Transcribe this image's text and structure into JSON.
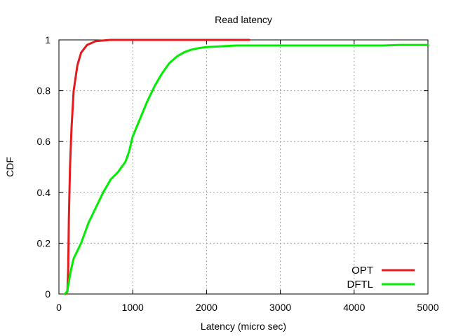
{
  "chart_data": {
    "type": "line",
    "title": "Read latency",
    "xlabel": "Latency (micro sec)",
    "ylabel": "CDF",
    "xlim": [
      0,
      5000
    ],
    "ylim": [
      0,
      1
    ],
    "x_ticks": [
      0,
      1000,
      2000,
      3000,
      4000,
      5000
    ],
    "x_tick_labels": [
      "0",
      "1000",
      "2000",
      "3000",
      "4000",
      "5000"
    ],
    "y_ticks": [
      0,
      0.2,
      0.4,
      0.6,
      0.8,
      1
    ],
    "y_tick_labels": [
      "0",
      "0.2",
      "0.4",
      "0.6",
      "0.8",
      "1"
    ],
    "grid": true,
    "legend_position": "bottom-right",
    "series": [
      {
        "name": "OPT",
        "color": "#e41a1c",
        "points": [
          [
            90,
            0
          ],
          [
            115,
            0.01
          ],
          [
            125,
            0.1
          ],
          [
            135,
            0.3
          ],
          [
            150,
            0.5
          ],
          [
            170,
            0.65
          ],
          [
            200,
            0.8
          ],
          [
            250,
            0.9
          ],
          [
            300,
            0.95
          ],
          [
            380,
            0.98
          ],
          [
            500,
            0.995
          ],
          [
            700,
            1.0
          ],
          [
            1500,
            1.0
          ],
          [
            2580,
            1.0
          ]
        ]
      },
      {
        "name": "DFTL",
        "color": "#00ee00",
        "points": [
          [
            80,
            0
          ],
          [
            110,
            0.01
          ],
          [
            130,
            0.04
          ],
          [
            160,
            0.09
          ],
          [
            200,
            0.14
          ],
          [
            300,
            0.2
          ],
          [
            400,
            0.28
          ],
          [
            500,
            0.34
          ],
          [
            600,
            0.4
          ],
          [
            700,
            0.45
          ],
          [
            800,
            0.48
          ],
          [
            900,
            0.52
          ],
          [
            950,
            0.56
          ],
          [
            1000,
            0.62
          ],
          [
            1100,
            0.69
          ],
          [
            1200,
            0.76
          ],
          [
            1300,
            0.82
          ],
          [
            1400,
            0.87
          ],
          [
            1500,
            0.91
          ],
          [
            1600,
            0.935
          ],
          [
            1700,
            0.952
          ],
          [
            1800,
            0.962
          ],
          [
            1900,
            0.968
          ],
          [
            2000,
            0.972
          ],
          [
            2200,
            0.975
          ],
          [
            2400,
            0.978
          ],
          [
            3000,
            0.978
          ],
          [
            4400,
            0.978
          ],
          [
            4600,
            0.98
          ],
          [
            5000,
            0.98
          ]
        ]
      }
    ]
  }
}
